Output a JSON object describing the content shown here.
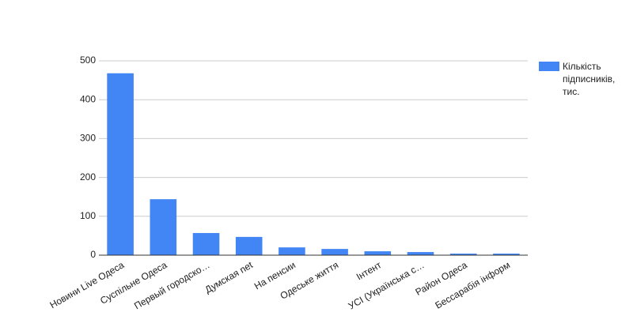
{
  "chart_data": {
    "type": "bar",
    "categories": [
      "Новини Live Одеса",
      "Суспільне Одеса",
      "Первый городско…",
      "Думская net",
      "На пенсии",
      "Одеське життя",
      "Інтент",
      "УСІ (Українська с…",
      "Район Одеса",
      "Бессарабія інформ"
    ],
    "series": [
      {
        "name": "Кількість підписників, тис.",
        "color": "#4285f4",
        "values": [
          468,
          144,
          57,
          47,
          20,
          16,
          10,
          8,
          4,
          4
        ]
      }
    ],
    "ylim": [
      0,
      500
    ],
    "yticks": [
      0,
      100,
      200,
      300,
      400,
      500
    ],
    "grid": true,
    "legend": "right"
  }
}
